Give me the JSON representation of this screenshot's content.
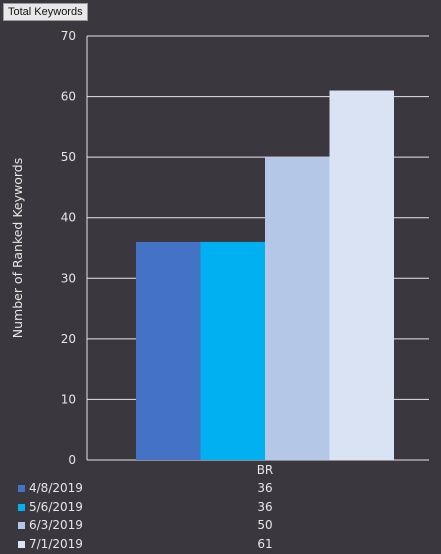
{
  "chart_data": {
    "type": "bar",
    "title": "Total Keywords",
    "ylabel": "Number of Ranked Keywords",
    "xlabel": "",
    "categories": [
      "BR"
    ],
    "ylim": [
      0,
      70
    ],
    "yticks": [
      0,
      10,
      20,
      30,
      40,
      50,
      60,
      70
    ],
    "grid": true,
    "legend_position": "bottom",
    "series": [
      {
        "name": "4/8/2019",
        "values": [
          36
        ],
        "color": "#4472c4"
      },
      {
        "name": "5/6/2019",
        "values": [
          36
        ],
        "color": "#00b0f0"
      },
      {
        "name": "6/3/2019",
        "values": [
          50
        ],
        "color": "#b4c7e7"
      },
      {
        "name": "7/1/2019",
        "values": [
          61
        ],
        "color": "#dae3f3"
      }
    ]
  }
}
